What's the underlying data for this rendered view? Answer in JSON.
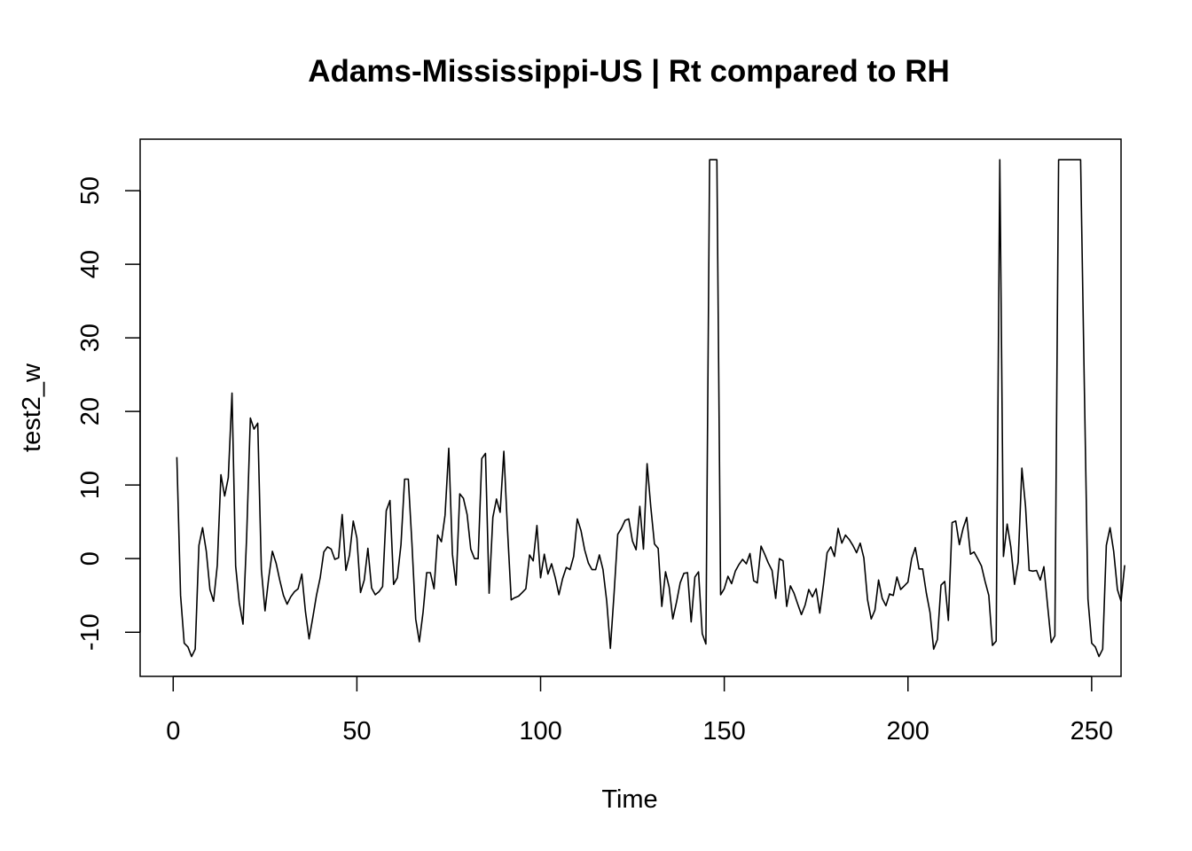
{
  "chart_data": {
    "type": "line",
    "title": "Adams-Mississippi-US | Rt compared to RH",
    "xlabel": "Time",
    "ylabel": "test2_w",
    "xlim": [
      -9,
      258
    ],
    "ylim": [
      -16,
      57
    ],
    "x_ticks": [
      0,
      50,
      100,
      150,
      200,
      250
    ],
    "y_ticks": [
      -10,
      0,
      10,
      20,
      30,
      40,
      50
    ],
    "x_tick_labels": [
      "0",
      "50",
      "100",
      "150",
      "200",
      "250"
    ],
    "y_tick_labels": [
      "-10",
      "0",
      "10",
      "20",
      "30",
      "40",
      "50"
    ],
    "grid": false,
    "legend": "none",
    "line_color": "#000000",
    "series": [
      {
        "x_start": 1,
        "x_step": 1,
        "values": [
          13.8,
          -5,
          -11.5,
          -12,
          -13.3,
          -12.3,
          1.8,
          4.2,
          1,
          -4.2,
          -5.8,
          -0.9,
          11.4,
          8.5,
          11,
          22.5,
          -1,
          -6,
          -8.9,
          3,
          19.1,
          17.6,
          18.4,
          -1.5,
          -7.1,
          -2.6,
          1,
          -0.6,
          -2.9,
          -5,
          -6.2,
          -5.2,
          -4.5,
          -4.1,
          -2.1,
          -7.2,
          -10.9,
          -8,
          -5,
          -2.6,
          0.9,
          1.6,
          1.3,
          -0.1,
          0.1,
          6,
          -1.6,
          0.5,
          5.1,
          2.8,
          -4.6,
          -2.9,
          1.4,
          -4,
          -4.9,
          -4.5,
          -3.8,
          6.5,
          7.9,
          -3.5,
          -2.6,
          1.9,
          10.8,
          10.8,
          2,
          -8.2,
          -11.3,
          -7.3,
          -1.9,
          -1.9,
          -4.1,
          3.2,
          2.3,
          5.9,
          15,
          0.6,
          -3.6,
          8.8,
          8.2,
          6,
          1.3,
          0,
          0,
          13.6,
          14.3,
          -4.7,
          5.6,
          8.1,
          6.3,
          14.6,
          4,
          -5.6,
          -5.3,
          -5.1,
          -4.6,
          -4.1,
          0.5,
          -0.3,
          4.5,
          -2.6,
          0.6,
          -2.1,
          -0.7,
          -2.6,
          -4.9,
          -2.7,
          -1.2,
          -1.5,
          0.3,
          5.4,
          3.8,
          1.2,
          -0.6,
          -1.5,
          -1.5,
          0.5,
          -1.5,
          -5.8,
          -12.2,
          -4.7,
          3.3,
          4.1,
          5.2,
          5.4,
          2.4,
          1.2,
          7.1,
          1.3,
          12.9,
          7,
          2,
          1.4,
          -6.5,
          -1.8,
          -3.9,
          -8.2,
          -5.9,
          -3.3,
          -2,
          -1.9,
          -8.6,
          -2.5,
          -1.8,
          -10.2,
          -11.6,
          54.2,
          54.2,
          54.2,
          -4.9,
          -4.1,
          -2.4,
          -3.4,
          -1.7,
          -0.8,
          -0.1,
          -0.7,
          0.7,
          -3,
          -3.3,
          1.7,
          0.6,
          -0.6,
          -1.6,
          -5.4,
          0,
          -0.3,
          -6.5,
          -3.7,
          -4.7,
          -6.2,
          -7.6,
          -6.3,
          -4.2,
          -5.2,
          -4.1,
          -7.4,
          -3.5,
          0.8,
          1.6,
          0.3,
          4.1,
          2.1,
          3.2,
          2.6,
          1.8,
          0.8,
          2.1,
          0.1,
          -5.6,
          -8.2,
          -7,
          -2.9,
          -5.4,
          -6.4,
          -4.8,
          -5,
          -2.5,
          -4.2,
          -3.7,
          -3.2,
          0,
          1.5,
          -1.4,
          -1.4,
          -4.7,
          -7.3,
          -12.3,
          -11,
          -3.6,
          -3.1,
          -8.4,
          4.9,
          5.1,
          1.9,
          4.1,
          5.6,
          0.6,
          0.9,
          0,
          -1,
          -3.1,
          -5,
          -11.8,
          -11.2,
          54.2,
          0.3,
          4.7,
          1.6,
          -3.5,
          -0.5,
          12.3,
          7.1,
          -1.6,
          -1.7,
          -1.6,
          -2.9,
          -1.1,
          -6.4,
          -11.4,
          -10.5,
          54.2,
          54.2,
          54.2,
          54.2,
          54.2,
          54.2,
          54.2,
          23.5,
          -5.5,
          -11.5,
          -12,
          -13.3,
          -12.3,
          1.8,
          4.2,
          1,
          -4.2,
          -5.8,
          -0.9
        ]
      }
    ]
  }
}
